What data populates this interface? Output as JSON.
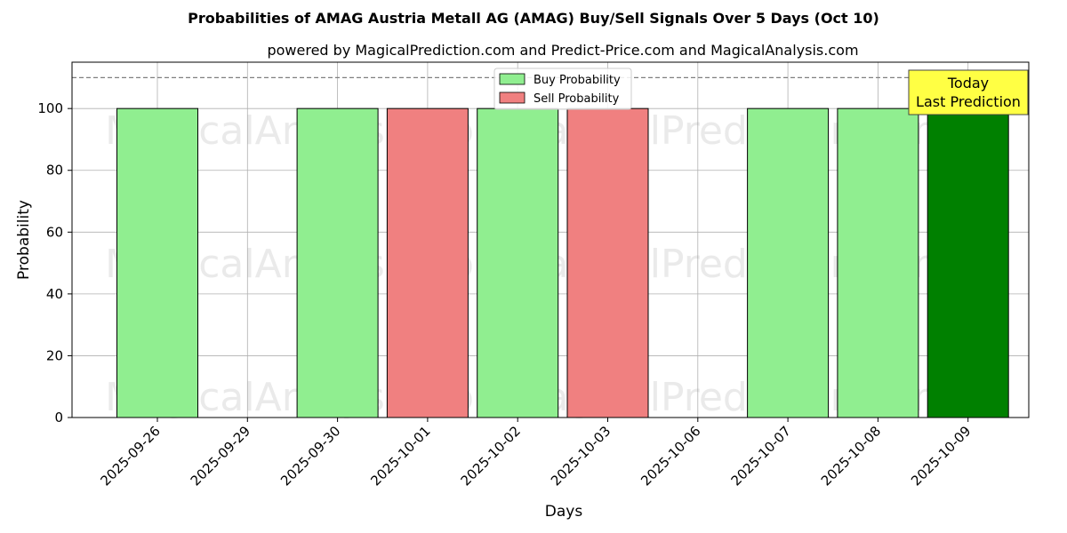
{
  "chart_data": {
    "type": "bar",
    "title": "Probabilities of AMAG Austria Metall AG (AMAG) Buy/Sell Signals Over 5 Days (Oct 10)",
    "subtitle": "powered by MagicalPrediction.com and Predict-Price.com and MagicalAnalysis.com",
    "xlabel": "Days",
    "ylabel": "Probability",
    "ylim": [
      0,
      115
    ],
    "yticks": [
      0,
      20,
      40,
      60,
      80,
      100
    ],
    "reference_line": 110,
    "grid": true,
    "legend_position": "top-center",
    "categories": [
      "2025-09-26",
      "2025-09-29",
      "2025-09-30",
      "2025-10-01",
      "2025-10-02",
      "2025-10-03",
      "2025-10-06",
      "2025-10-07",
      "2025-10-08",
      "2025-10-09"
    ],
    "series": [
      {
        "name": "Buy Probability",
        "color": "#90ee90",
        "values": [
          100,
          0,
          100,
          0,
          100,
          0,
          0,
          100,
          100,
          100
        ]
      },
      {
        "name": "Sell Probability",
        "color": "#f08080",
        "values": [
          0,
          0,
          0,
          100,
          0,
          100,
          0,
          0,
          0,
          0
        ]
      }
    ],
    "highlight": {
      "category": "2025-10-09",
      "color": "#008000"
    },
    "annotation": {
      "lines": [
        "Today",
        "Last Prediction"
      ],
      "background": "#ffff44"
    },
    "watermarks": [
      "MagicalAnalysis.com",
      "MagicalPrediction.com"
    ]
  }
}
